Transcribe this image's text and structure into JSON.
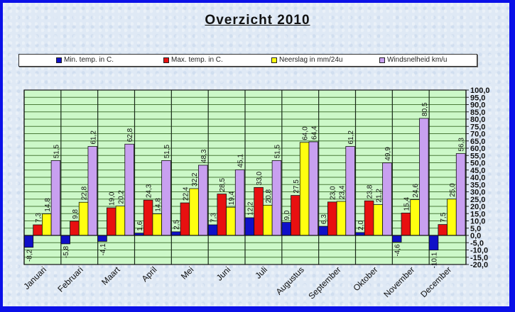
{
  "chart_data": {
    "type": "bar",
    "title": "Overzicht 2010",
    "xlabel": "",
    "ylabel": "",
    "ylim": [
      -20,
      100
    ],
    "ytick_step": 5,
    "ytick_labels": [
      "100,0",
      "95,0",
      "90,0",
      "85,0",
      "80,0",
      "75,0",
      "70,0",
      "65,0",
      "60,0",
      "55,0",
      "50,0",
      "45,0",
      "40,0",
      "35,0",
      "30,0",
      "25,0",
      "20,0",
      "15,0",
      "10,0",
      "5,0",
      "0,0",
      "-5,0",
      "-10,0",
      "-15,0",
      "-20,0"
    ],
    "grid": true,
    "legend_position": "top",
    "categories": [
      "Januari",
      "Februari",
      "Maart",
      "April",
      "Mei",
      "Juni",
      "Juli",
      "Augustus",
      "September",
      "Oktober",
      "November",
      "December"
    ],
    "series": [
      {
        "name": "Min. temp. in C.",
        "color": "#1010c8",
        "values": [
          -8.2,
          -5.8,
          -4.1,
          1.6,
          2.5,
          7.3,
          12.2,
          9.0,
          6.3,
          2.0,
          -4.6,
          -10.1
        ],
        "labels": [
          "-8,2",
          "-5,8",
          "-4,1",
          "1,6",
          "2,5",
          "7,3",
          "12,2",
          "9,0",
          "6,3",
          "2,0",
          "-4,6",
          "-10,1"
        ]
      },
      {
        "name": "Max. temp. in C.",
        "color": "#e81010",
        "values": [
          7.3,
          9.8,
          19.0,
          24.3,
          22.4,
          28.5,
          33.0,
          27.5,
          23.0,
          23.8,
          15.4,
          7.5
        ],
        "labels": [
          "7,3",
          "9,8",
          "19,0",
          "24,3",
          "22,4",
          "28,5",
          "33,0",
          "27,5",
          "23,0",
          "23,8",
          "15,4",
          "7,5"
        ]
      },
      {
        "name": "Neerslag in mm/24u",
        "color": "#ffff10",
        "values": [
          14.8,
          22.8,
          20.2,
          14.8,
          32.2,
          19.4,
          20.8,
          64.0,
          23.4,
          21.2,
          24.6,
          25.0
        ],
        "labels": [
          "14,8",
          "22,8",
          "20,2",
          "14,8",
          "32,2",
          "19,4",
          "20,8",
          "64,0",
          "23,4",
          "21,2",
          "24,6",
          "25,0"
        ]
      },
      {
        "name": "Windsnelheid km/u",
        "color": "#c8a0f0",
        "values": [
          51.5,
          61.2,
          62.8,
          51.5,
          48.3,
          45.1,
          51.5,
          64.4,
          61.2,
          49.9,
          80.5,
          56.3
        ],
        "labels": [
          "51,5",
          "61,2",
          "62,8",
          "51,5",
          "48,3",
          "45,1",
          "51,5",
          "64,4",
          "61,2",
          "49,9",
          "80,5",
          "56,3"
        ]
      }
    ]
  },
  "colors": {
    "frame_border": "#0a10e8",
    "plot_background": "#ccf8c8",
    "gridline": "#4a7a3a"
  }
}
